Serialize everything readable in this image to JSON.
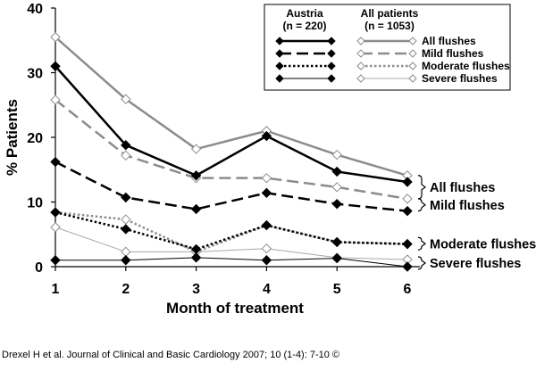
{
  "chart_data": {
    "type": "line",
    "ylabel": "% Patients",
    "xlabel": "Month of treatment",
    "x": [
      1,
      2,
      3,
      4,
      5,
      6
    ],
    "ylim": [
      0,
      40
    ],
    "yticks": [
      0,
      10,
      20,
      30,
      40
    ],
    "legend": {
      "position": "top-right",
      "group_austria": "Austria",
      "group_austria_n": "(n = 220)",
      "group_all": "All patients",
      "group_all_n": "(n = 1053)"
    },
    "series": [
      {
        "name": "All flushes",
        "group": "Austria",
        "color": "#000000",
        "dash": "solid",
        "width": 2.5,
        "marker_fill": "#000000",
        "values": [
          31,
          18.8,
          14.1,
          20.2,
          14.7,
          13.1
        ]
      },
      {
        "name": "Mild flushes",
        "group": "Austria",
        "color": "#000000",
        "dash": "long",
        "width": 2.5,
        "marker_fill": "#000000",
        "values": [
          16.2,
          10.7,
          8.9,
          11.4,
          9.7,
          8.6
        ]
      },
      {
        "name": "Moderate flushes",
        "group": "Austria",
        "color": "#000000",
        "dash": "dot",
        "width": 2.5,
        "marker_fill": "#000000",
        "values": [
          8.4,
          5.8,
          2.7,
          6.4,
          3.8,
          3.5
        ]
      },
      {
        "name": "Severe flushes",
        "group": "Austria",
        "color": "#000000",
        "dash": "solid",
        "width": 1,
        "marker_fill": "#000000",
        "values": [
          1,
          1,
          1.4,
          1,
          1.3,
          0
        ]
      },
      {
        "name": "All flushes",
        "group": "All patients",
        "color": "#8c8c8c",
        "dash": "solid",
        "width": 2.5,
        "marker_fill": "#ffffff",
        "values": [
          35.5,
          25.9,
          18.2,
          21,
          17.3,
          14.1
        ]
      },
      {
        "name": "Mild flushes",
        "group": "All patients",
        "color": "#8c8c8c",
        "dash": "long",
        "width": 2.5,
        "marker_fill": "#ffffff",
        "values": [
          25.8,
          17.2,
          13.7,
          13.7,
          12.3,
          10.5
        ]
      },
      {
        "name": "Moderate flushes",
        "group": "All patients",
        "color": "#8c8c8c",
        "dash": "dot",
        "width": 2.5,
        "marker_fill": "#ffffff",
        "values": [
          8.4,
          7.3,
          2.3,
          6.4,
          3.8,
          3.5
        ]
      },
      {
        "name": "Severe flushes",
        "group": "All patients",
        "color": "#a8a8a8",
        "dash": "solid",
        "width": 1,
        "marker_fill": "#ffffff",
        "values": [
          6.1,
          2.3,
          2.3,
          2.8,
          1.4,
          1.1
        ]
      }
    ],
    "annotations": [
      {
        "label": "All flushes",
        "range": [
          10.5,
          14.1
        ]
      },
      {
        "label": "Mild flushes",
        "range": [
          8.6,
          10.5
        ]
      },
      {
        "label": "Moderate flushes",
        "range": [
          3.3,
          3.8
        ]
      },
      {
        "label": "Severe flushes",
        "range": [
          0,
          1.1
        ]
      }
    ]
  },
  "credit": "Drexel H et al. Journal of Clinical and Basic Cardiology 2007; 10 (1-4): 7-10 ©"
}
